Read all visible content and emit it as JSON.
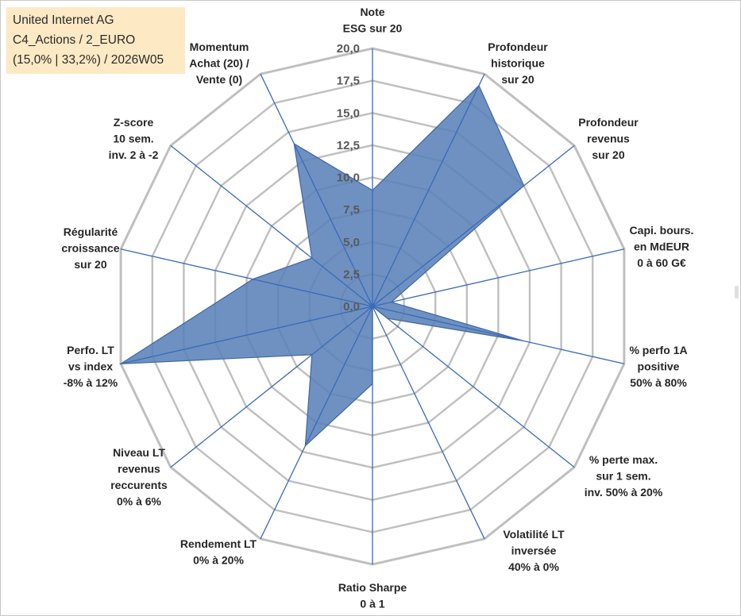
{
  "info": {
    "line1": "United Internet AG",
    "line2": "C4_Actions / 2_EURO",
    "line3": "(15,0% | 33,2%) / 2026W05"
  },
  "chart_data": {
    "type": "radar",
    "title": "",
    "rmax": 20,
    "tick_step": 2.5,
    "ticks": [
      "0,0",
      "2,5",
      "5,0",
      "7,5",
      "10,0",
      "12,5",
      "15,0",
      "17,5",
      "20,0"
    ],
    "axes": [
      [
        "Note",
        "ESG sur 20"
      ],
      [
        "Profondeur",
        "historique",
        "sur 20"
      ],
      [
        "Profondeur",
        "revenus",
        "sur 20"
      ],
      [
        "Capi. bours.",
        "en MdEUR",
        "0 à 60 G€"
      ],
      [
        "% perfo 1A",
        "positive",
        "50% à 80%"
      ],
      [
        "% perte max.",
        "sur 1 sem.",
        "inv. 50% à 20%"
      ],
      [
        "Volatilité LT",
        "inversée",
        "40% à 0%"
      ],
      [
        "Ratio Sharpe",
        "0 à 1"
      ],
      [
        "Rendement LT",
        "0% à 20%"
      ],
      [
        "Niveau LT",
        "revenus",
        "reccurents",
        "0% à 6%"
      ],
      [
        "Perfo. LT",
        "vs index",
        "-8% à 12%"
      ],
      [
        "Régularité",
        "croissance",
        "sur 20"
      ],
      [
        "Z-score",
        "10 sem.",
        "inv. 2 à -2"
      ],
      [
        "Momentum",
        "Achat (20) /",
        "Vente (0)"
      ]
    ],
    "series": [
      {
        "name": "United Internet AG",
        "values": [
          9.0,
          19.0,
          15.0,
          1.5,
          12.0,
          1.5,
          0.0,
          6.0,
          12.0,
          6.0,
          20.0,
          9.5,
          6.0,
          14.0
        ],
        "color": "#4a72a8"
      }
    ]
  },
  "colors": {
    "grid": "#bfbfbf",
    "spoke": "#3a6ab8",
    "fill": "#5a82b8",
    "info_bg": "#fde9c4"
  }
}
